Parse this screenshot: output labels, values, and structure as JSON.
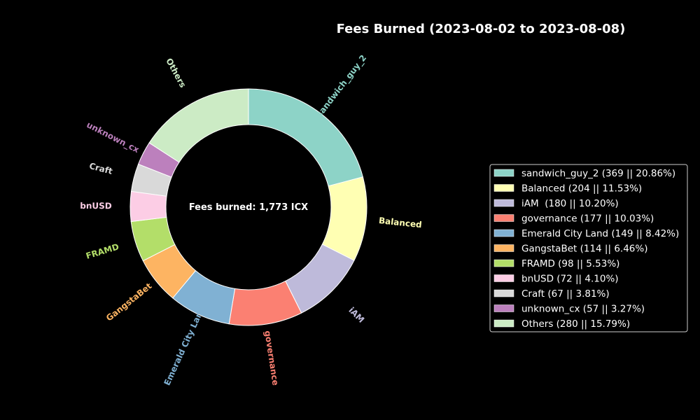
{
  "chart_data": {
    "type": "pie",
    "title": "Fees Burned (2023-08-02 to 2023-08-08)",
    "center_text": "Fees burned: 1,773 ICX",
    "donut": true,
    "legend_position": "right",
    "slices": [
      {
        "label": "sandwich_guy_2",
        "value": 369,
        "percent": 20.86,
        "color": "#8dd3c7",
        "legend": "sandwich_guy_2 (369 || 20.86%)"
      },
      {
        "label": "Balanced",
        "value": 204,
        "percent": 11.53,
        "color": "#ffffb3",
        "legend": "Balanced (204 || 11.53%)"
      },
      {
        "label": "iAM",
        "value": 180,
        "percent": 10.2,
        "color": "#bebada",
        "legend": "iAM  (180 || 10.20%)"
      },
      {
        "label": "governance",
        "value": 177,
        "percent": 10.03,
        "color": "#fb8072",
        "legend": "governance (177 || 10.03%)"
      },
      {
        "label": "Emerald City Land",
        "value": 149,
        "percent": 8.42,
        "color": "#80b1d3",
        "legend": "Emerald City Land (149 || 8.42%)"
      },
      {
        "label": "GangstaBet",
        "value": 114,
        "percent": 6.46,
        "color": "#fdb462",
        "legend": "GangstaBet (114 || 6.46%)"
      },
      {
        "label": "FRAMD",
        "value": 98,
        "percent": 5.53,
        "color": "#b3de69",
        "legend": "FRAMD (98 || 5.53%)"
      },
      {
        "label": "bnUSD",
        "value": 72,
        "percent": 4.1,
        "color": "#fccde5",
        "legend": "bnUSD (72 || 4.10%)"
      },
      {
        "label": "Craft",
        "value": 67,
        "percent": 3.81,
        "color": "#d9d9d9",
        "legend": "Craft (67 || 3.81%)"
      },
      {
        "label": "unknown_cx",
        "value": 57,
        "percent": 3.27,
        "color": "#bc80bd",
        "legend": "unknown_cx (57 || 3.27%)"
      },
      {
        "label": "Others",
        "value": 280,
        "percent": 15.79,
        "color": "#ccebc5",
        "legend": "Others (280 || 15.79%)"
      }
    ]
  }
}
